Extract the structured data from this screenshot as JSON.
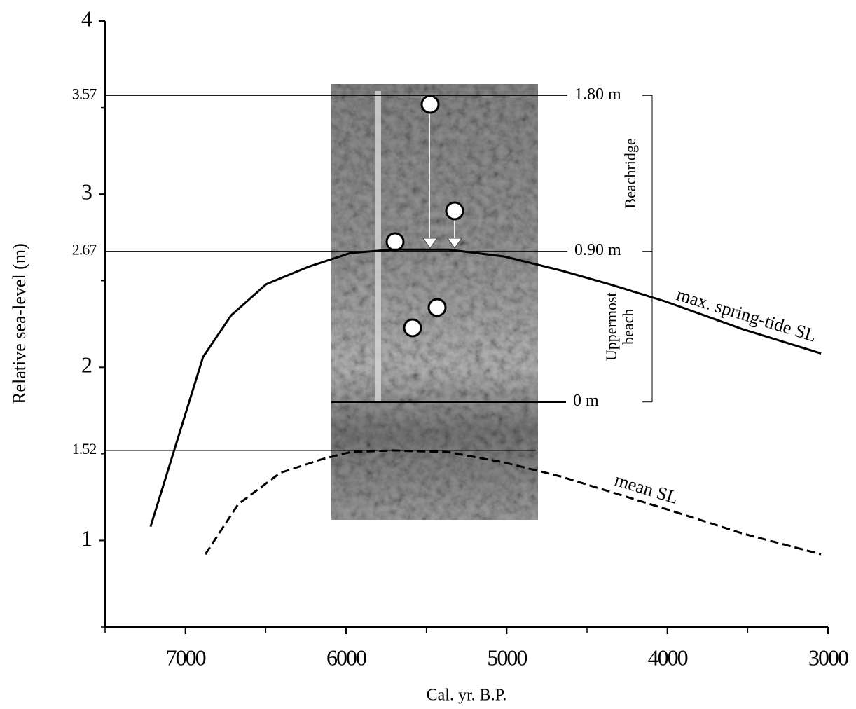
{
  "chart_data": {
    "type": "line",
    "xlabel": "Cal. yr. B.P.",
    "ylabel": "Relative sea-level (m)",
    "xlim": [
      7500,
      3000
    ],
    "ylim": [
      0.5,
      4
    ],
    "xticks": [
      7000,
      6000,
      5000,
      4000,
      3000
    ],
    "xminor": [
      7500,
      6500,
      5500,
      4500,
      3500
    ],
    "yticks": [
      1,
      2,
      3,
      4
    ],
    "yminor": [
      0.5,
      1.5,
      2.5,
      3.5
    ],
    "reference_lines": [
      {
        "value": 3.57,
        "label": "3.57",
        "depth_label": "1.80 m"
      },
      {
        "value": 2.67,
        "label": "2.67",
        "depth_label": "0.90 m"
      },
      {
        "value": 1.52,
        "label": "1.52"
      }
    ],
    "depth_zero": {
      "value": 1.8,
      "label": "0 m"
    },
    "units": {
      "upper": "Beachridge",
      "lower": [
        "Uppermost",
        "beach"
      ]
    },
    "series": [
      {
        "name": "max. spring-tide SL",
        "color": "#000000",
        "dashed": false,
        "x": [
          7217,
          6890,
          6715,
          6497,
          6236,
          5974,
          5712,
          5363,
          5014,
          4665,
          4360,
          4011,
          3531,
          3043
        ],
        "values": [
          1.08,
          2.06,
          2.3,
          2.48,
          2.58,
          2.66,
          2.68,
          2.68,
          2.64,
          2.56,
          2.48,
          2.38,
          2.22,
          2.08
        ]
      },
      {
        "name": "mean SL",
        "color": "#000000",
        "dashed": true,
        "x": [
          6876,
          6671,
          6410,
          6148,
          5974,
          5712,
          5363,
          5014,
          4665,
          4316,
          3968,
          3531,
          3043
        ],
        "values": [
          0.92,
          1.21,
          1.39,
          1.47,
          1.51,
          1.52,
          1.51,
          1.45,
          1.37,
          1.27,
          1.17,
          1.04,
          0.92
        ]
      }
    ]
  }
}
